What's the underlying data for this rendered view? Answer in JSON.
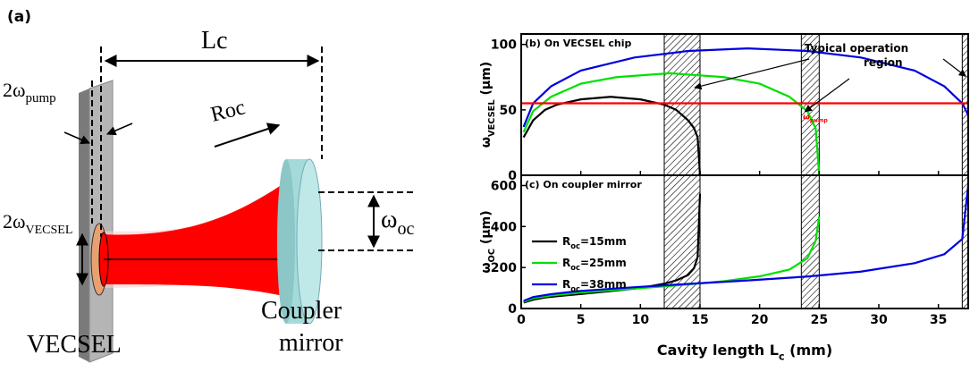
{
  "diagram": {
    "panel_label": "(a)",
    "cavity_length": "Lc",
    "pump_spot": {
      "base": "2ω",
      "sub": "pump"
    },
    "radius": "Roc",
    "oc_spot": {
      "base": "ω",
      "sub": "oc"
    },
    "chip_spot": {
      "base": "2ω",
      "sub": "VECSEL"
    },
    "chip": "VECSEL",
    "mirror": [
      "Coupler",
      "mirror"
    ]
  },
  "chart_data": [
    {
      "type": "line",
      "panel_label": "(b) On VECSEL chip",
      "ylabel": {
        "base": "ω",
        "sub": "VECSEL",
        "rest": " (μm)"
      },
      "xlim": [
        0,
        37.5
      ],
      "ylim": [
        0,
        108
      ],
      "xticks": [
        0,
        5,
        10,
        15,
        20,
        25,
        30,
        35
      ],
      "yticks": [
        0,
        50,
        100
      ],
      "shaded_regions": [
        [
          12,
          15
        ],
        [
          23.5,
          25
        ],
        [
          37,
          37.5
        ]
      ],
      "annotation": [
        "Typical operation",
        "region"
      ],
      "series": [
        {
          "color": "#000000",
          "x": [
            0.2,
            1,
            2,
            3,
            5,
            7.5,
            10,
            12,
            13,
            14,
            14.5,
            14.8,
            15
          ],
          "values": [
            29,
            42,
            50,
            54,
            58,
            60,
            58,
            54,
            50,
            42,
            36,
            29,
            0
          ]
        },
        {
          "color": "#00e000",
          "x": [
            0.2,
            1,
            2.5,
            5,
            8,
            12.5,
            17,
            20,
            22.5,
            24,
            24.7,
            25
          ],
          "values": [
            33,
            49,
            60,
            70,
            75,
            78,
            75,
            70,
            60,
            49,
            36,
            0
          ]
        },
        {
          "color": "#0000e0",
          "x": [
            0.2,
            1,
            2.5,
            5,
            9.5,
            14,
            19,
            24,
            28.5,
            33,
            35.5,
            37,
            37.5
          ],
          "values": [
            37,
            55,
            68,
            80,
            90,
            95,
            97,
            95,
            90,
            80,
            68,
            55,
            46
          ]
        },
        {
          "name": {
            "base": "ω",
            "sub": "pump"
          },
          "color": "#ff0000",
          "x": [
            0,
            37.5
          ],
          "values": [
            55,
            55
          ]
        }
      ]
    },
    {
      "type": "line",
      "panel_label": "(c) On coupler mirror",
      "ylabel": {
        "base": "ω",
        "sub": "OC",
        "rest": " (μm)"
      },
      "xlabel": {
        "base": "Cavity length L",
        "sub": "c",
        "rest": " (mm)"
      },
      "xlim": [
        0,
        37.5
      ],
      "ylim": [
        0,
        650
      ],
      "xticks": [
        0,
        5,
        10,
        15,
        20,
        25,
        30,
        35
      ],
      "yticks": [
        0,
        200,
        400,
        600
      ],
      "shaded_regions": [
        [
          12,
          15
        ],
        [
          23.5,
          25
        ],
        [
          37,
          37.5
        ]
      ],
      "legend": "lower left",
      "series": [
        {
          "name": {
            "base": "R",
            "sub": "oc",
            "rest": "=15mm"
          },
          "color": "#000000",
          "x": [
            0.2,
            1,
            2,
            3,
            5,
            7.5,
            10,
            12,
            13,
            14,
            14.5,
            14.8,
            15
          ],
          "values": [
            29,
            43,
            54,
            60,
            71,
            85,
            100,
            121,
            137,
            163,
            197,
            251,
            560
          ]
        },
        {
          "name": {
            "base": "R",
            "sub": "oc",
            "rest": "=25mm"
          },
          "color": "#00e000",
          "x": [
            0.2,
            1,
            2.5,
            5,
            8,
            12.5,
            17,
            20,
            22.5,
            24,
            24.7,
            25
          ],
          "values": [
            33,
            50,
            63,
            78,
            91,
            110,
            133,
            157,
            190,
            245,
            329,
            450
          ]
        },
        {
          "name": {
            "base": "R",
            "sub": "oc",
            "rest": "=38mm"
          },
          "color": "#0000e0",
          "x": [
            0.2,
            1,
            2.5,
            5,
            9.5,
            14,
            19,
            24,
            28.5,
            33,
            35.5,
            37,
            37.5
          ],
          "values": [
            37,
            56,
            70,
            86,
            104,
            120,
            137,
            156,
            180,
            221,
            265,
            339,
            600
          ]
        }
      ]
    }
  ]
}
